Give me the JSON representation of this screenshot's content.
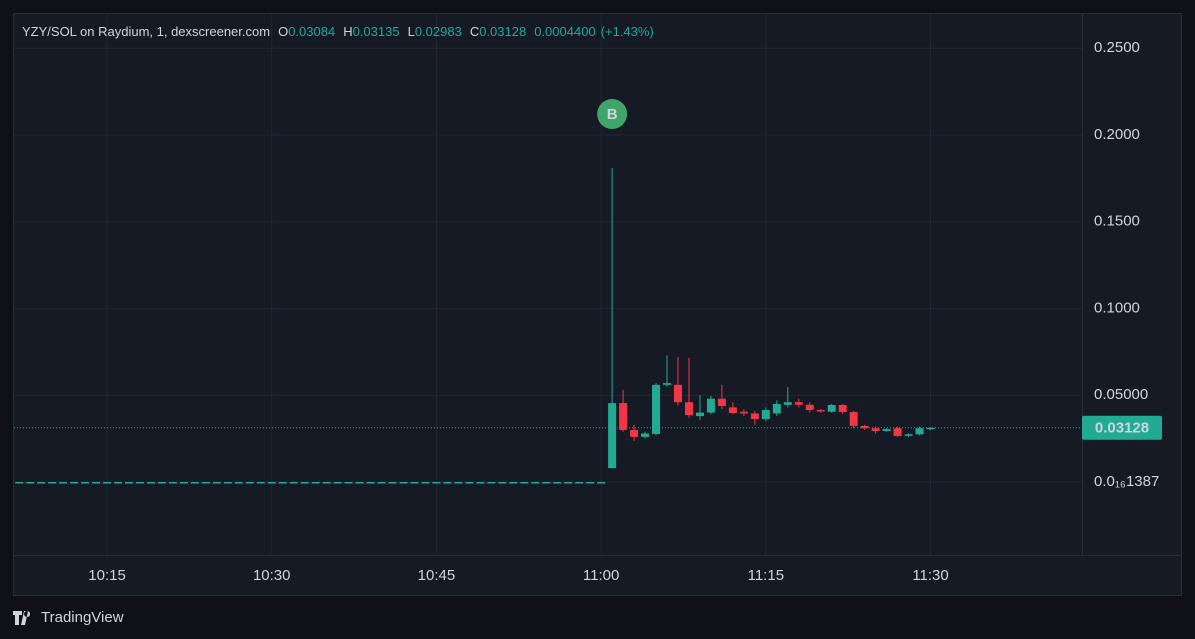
{
  "header": {
    "pair": "YZY/SOL on Raydium, 1, dexscreener.com",
    "ohlc": [
      {
        "key": "O",
        "value": 0.03084
      },
      {
        "key": "H",
        "value": 0.03135
      },
      {
        "key": "L",
        "value": 0.02983
      },
      {
        "key": "C",
        "value": 0.03128
      }
    ],
    "change": "0.0004400",
    "change_pct": "(+1.43%)"
  },
  "brand": "TradingView",
  "chart_data": {
    "type": "candlestick",
    "categories": [
      null,
      null,
      null,
      null,
      null,
      null,
      null,
      null,
      "10:15",
      null,
      null,
      null,
      null,
      null,
      null,
      null,
      null,
      null,
      null,
      null,
      null,
      null,
      null,
      "10:30",
      null,
      null,
      null,
      null,
      null,
      null,
      null,
      null,
      null,
      null,
      null,
      null,
      null,
      null,
      "10:45",
      null,
      null,
      null,
      null,
      null,
      null,
      null,
      null,
      null,
      null,
      null,
      null,
      null,
      null,
      "11:00",
      null,
      null,
      null,
      null,
      null,
      null,
      null,
      null,
      null,
      null,
      null,
      null,
      null,
      null,
      "11:15",
      null,
      null,
      null,
      null,
      null,
      null,
      null,
      null,
      null,
      null,
      null,
      null,
      null,
      null,
      "11:30"
    ],
    "open": [
      1.387e-17,
      1.387e-17,
      1.387e-17,
      1.387e-17,
      1.387e-17,
      1.387e-17,
      1.387e-17,
      1.387e-17,
      1.387e-17,
      1.387e-17,
      1.387e-17,
      1.387e-17,
      1.387e-17,
      1.387e-17,
      1.387e-17,
      1.387e-17,
      1.387e-17,
      1.387e-17,
      1.387e-17,
      1.387e-17,
      1.387e-17,
      1.387e-17,
      1.387e-17,
      1.387e-17,
      1.387e-17,
      1.387e-17,
      1.387e-17,
      1.387e-17,
      1.387e-17,
      1.387e-17,
      1.387e-17,
      1.387e-17,
      1.387e-17,
      1.387e-17,
      1.387e-17,
      1.387e-17,
      1.387e-17,
      1.387e-17,
      1.387e-17,
      1.387e-17,
      1.387e-17,
      1.387e-17,
      1.387e-17,
      1.387e-17,
      1.387e-17,
      1.387e-17,
      1.387e-17,
      1.387e-17,
      1.387e-17,
      1.387e-17,
      1.387e-17,
      1.387e-17,
      1.387e-17,
      1.387e-17,
      0.008,
      0.0455,
      0.03,
      0.026,
      0.0277,
      0.056,
      0.056,
      0.046,
      0.038,
      0.04,
      0.048,
      0.043,
      0.0405,
      0.0395,
      0.0363,
      0.0395,
      0.0445,
      0.046,
      0.0445,
      0.0415,
      0.0405,
      0.0444,
      0.0403,
      0.0323,
      0.031,
      0.0294,
      0.031,
      0.027,
      0.0275,
      0.03084
    ],
    "high": [
      1.387e-17,
      1.387e-17,
      1.387e-17,
      1.387e-17,
      1.387e-17,
      1.387e-17,
      1.387e-17,
      1.387e-17,
      1.387e-17,
      1.387e-17,
      1.387e-17,
      1.387e-17,
      1.387e-17,
      1.387e-17,
      1.387e-17,
      1.387e-17,
      1.387e-17,
      1.387e-17,
      1.387e-17,
      1.387e-17,
      1.387e-17,
      1.387e-17,
      1.387e-17,
      1.387e-17,
      1.387e-17,
      1.387e-17,
      1.387e-17,
      1.387e-17,
      1.387e-17,
      1.387e-17,
      1.387e-17,
      1.387e-17,
      1.387e-17,
      1.387e-17,
      1.387e-17,
      1.387e-17,
      1.387e-17,
      1.387e-17,
      1.387e-17,
      1.387e-17,
      1.387e-17,
      1.387e-17,
      1.387e-17,
      1.387e-17,
      1.387e-17,
      1.387e-17,
      1.387e-17,
      1.387e-17,
      1.387e-17,
      1.387e-17,
      1.387e-17,
      1.387e-17,
      1.387e-17,
      1.387e-17,
      0.181,
      0.053,
      0.033,
      0.029,
      0.057,
      0.073,
      0.072,
      0.0715,
      0.05,
      0.0496,
      0.056,
      0.046,
      0.042,
      0.041,
      0.043,
      0.047,
      0.0548,
      0.048,
      0.046,
      0.042,
      0.045,
      0.045,
      0.041,
      0.033,
      0.032,
      0.031,
      0.032,
      0.028,
      0.032,
      0.03135
    ],
    "low": [
      1.387e-17,
      1.387e-17,
      1.387e-17,
      1.387e-17,
      1.387e-17,
      1.387e-17,
      1.387e-17,
      1.387e-17,
      1.387e-17,
      1.387e-17,
      1.387e-17,
      1.387e-17,
      1.387e-17,
      1.387e-17,
      1.387e-17,
      1.387e-17,
      1.387e-17,
      1.387e-17,
      1.387e-17,
      1.387e-17,
      1.387e-17,
      1.387e-17,
      1.387e-17,
      1.387e-17,
      1.387e-17,
      1.387e-17,
      1.387e-17,
      1.387e-17,
      1.387e-17,
      1.387e-17,
      1.387e-17,
      1.387e-17,
      1.387e-17,
      1.387e-17,
      1.387e-17,
      1.387e-17,
      1.387e-17,
      1.387e-17,
      1.387e-17,
      1.387e-17,
      1.387e-17,
      1.387e-17,
      1.387e-17,
      1.387e-17,
      1.387e-17,
      1.387e-17,
      1.387e-17,
      1.387e-17,
      1.387e-17,
      1.387e-17,
      1.387e-17,
      1.387e-17,
      1.387e-17,
      1.387e-17,
      0.008,
      0.029,
      0.0236,
      0.025,
      0.027,
      0.055,
      0.044,
      0.037,
      0.0357,
      0.039,
      0.042,
      0.039,
      0.038,
      0.033,
      0.035,
      0.038,
      0.043,
      0.043,
      0.04,
      0.04,
      0.04,
      0.039,
      0.031,
      0.03,
      0.028,
      0.029,
      0.026,
      0.026,
      0.027,
      0.02983
    ],
    "close": [
      1.387e-17,
      1.387e-17,
      1.387e-17,
      1.387e-17,
      1.387e-17,
      1.387e-17,
      1.387e-17,
      1.387e-17,
      1.387e-17,
      1.387e-17,
      1.387e-17,
      1.387e-17,
      1.387e-17,
      1.387e-17,
      1.387e-17,
      1.387e-17,
      1.387e-17,
      1.387e-17,
      1.387e-17,
      1.387e-17,
      1.387e-17,
      1.387e-17,
      1.387e-17,
      1.387e-17,
      1.387e-17,
      1.387e-17,
      1.387e-17,
      1.387e-17,
      1.387e-17,
      1.387e-17,
      1.387e-17,
      1.387e-17,
      1.387e-17,
      1.387e-17,
      1.387e-17,
      1.387e-17,
      1.387e-17,
      1.387e-17,
      1.387e-17,
      1.387e-17,
      1.387e-17,
      1.387e-17,
      1.387e-17,
      1.387e-17,
      1.387e-17,
      1.387e-17,
      1.387e-17,
      1.387e-17,
      1.387e-17,
      1.387e-17,
      1.387e-17,
      1.387e-17,
      1.387e-17,
      1.387e-17,
      0.0455,
      0.03,
      0.026,
      0.028,
      0.056,
      0.057,
      0.046,
      0.0386,
      0.04,
      0.048,
      0.0438,
      0.0398,
      0.0395,
      0.0363,
      0.0415,
      0.045,
      0.046,
      0.0445,
      0.0415,
      0.041,
      0.0444,
      0.0403,
      0.0323,
      0.031,
      0.0294,
      0.0305,
      0.0265,
      0.0275,
      0.031,
      0.03128
    ],
    "up_color": "#22ab94",
    "down_color": "#f23645",
    "ylim": [
      -0.04207,
      0.26974
    ],
    "yticks": [
      {
        "value": 0.25,
        "label": "0.2500"
      },
      {
        "value": 0.2,
        "label": "0.2000"
      },
      {
        "value": 0.15,
        "label": "0.1500"
      },
      {
        "value": 0.1,
        "label": "0.1000"
      },
      {
        "value": 0.05,
        "label": "0.05000"
      },
      {
        "value": 1.387e-17,
        "label": "0.0₁₆1387"
      }
    ],
    "last_price": 0.03128,
    "marker": "B",
    "grid": true
  }
}
